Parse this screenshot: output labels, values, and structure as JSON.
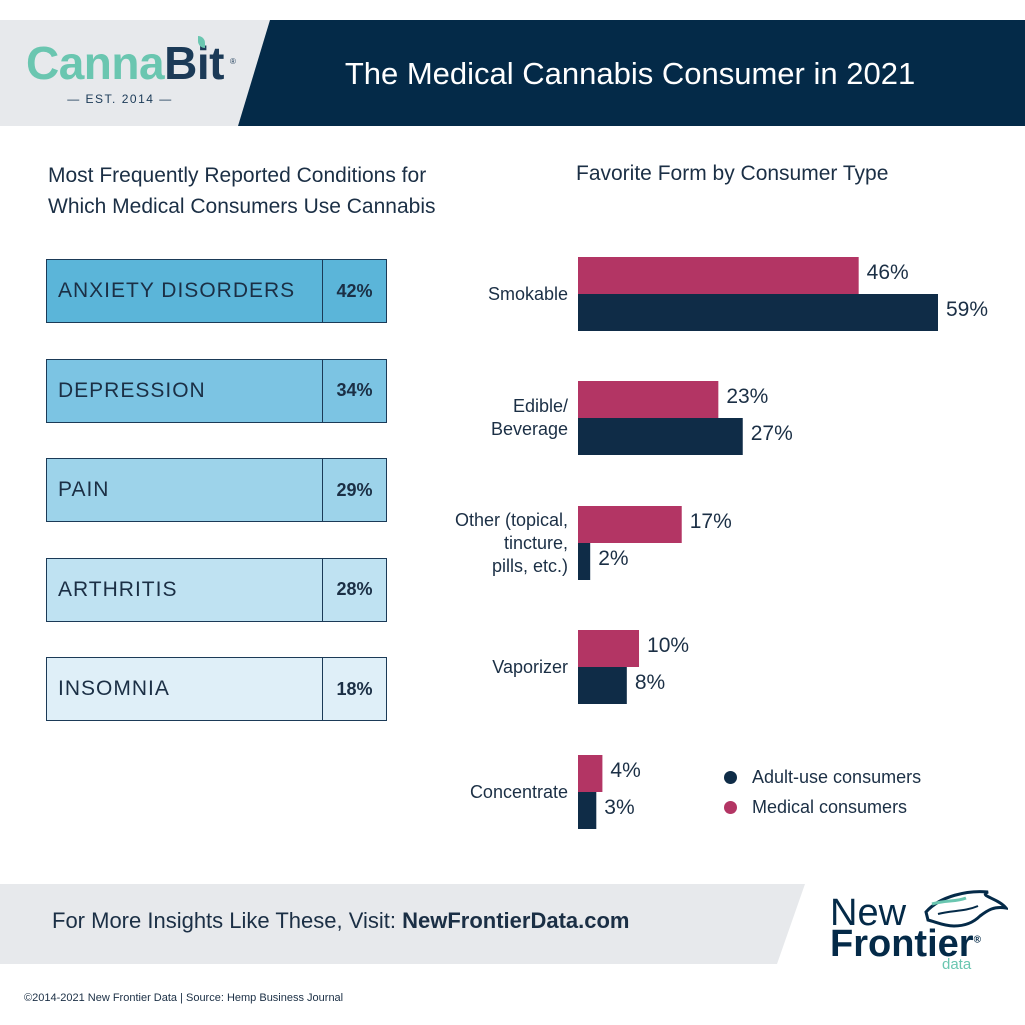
{
  "header": {
    "brand_part1": "Canna",
    "brand_part2": "Bit",
    "brand_reg": "®",
    "established": "— EST. 2014 —",
    "title": "The Medical Cannabis Consumer in 2021"
  },
  "colors": {
    "navy": "#042a48",
    "medical": "#b33564",
    "adult": "#0f2c47",
    "teal": "#6ac6b0",
    "cond_shades": [
      "#5bb5d9",
      "#7cc4e3",
      "#9dd3ea",
      "#bfe2f2",
      "#dfeff8"
    ]
  },
  "conditions_panel": {
    "title_line1": "Most Frequently Reported Conditions for",
    "title_line2": "Which Medical Consumers Use Cannabis",
    "items": [
      {
        "name": "ANXIETY DISORDERS",
        "pct": "42%"
      },
      {
        "name": "DEPRESSION",
        "pct": "34%"
      },
      {
        "name": "PAIN",
        "pct": "29%"
      },
      {
        "name": "ARTHRITIS",
        "pct": "28%"
      },
      {
        "name": "INSOMNIA",
        "pct": "18%"
      }
    ]
  },
  "chart_data": {
    "type": "bar",
    "orientation": "horizontal",
    "title": "Favorite Form by Consumer Type",
    "categories": [
      "Smokable",
      "Edible/\nBeverage",
      "Other (topical,\ntincture,\npills, etc.)",
      "Vaporizer",
      "Concentrate"
    ],
    "series": [
      {
        "name": "Medical consumers",
        "values": [
          46,
          23,
          17,
          10,
          4
        ]
      },
      {
        "name": "Adult-use consumers",
        "values": [
          59,
          27,
          2,
          8,
          3
        ]
      }
    ],
    "value_labels": {
      "Medical consumers": [
        "46%",
        "23%",
        "17%",
        "10%",
        "4%"
      ],
      "Adult-use consumers": [
        "59%",
        "27%",
        "2%",
        "8%",
        "3%"
      ]
    },
    "xlim": [
      0,
      59
    ],
    "legend": [
      "Adult-use consumers",
      "Medical consumers"
    ],
    "legend_position": "bottom-right",
    "grid": false
  },
  "footer": {
    "cta_prefix": "For More Insights Like These, Visit: ",
    "cta_url": "NewFrontierData.com",
    "logo_new": "New",
    "logo_frontier": "Frontier",
    "logo_reg": "®",
    "logo_data": "data",
    "copyright": "©2014-2021  New Frontier Data | Source: Hemp Business Journal"
  }
}
